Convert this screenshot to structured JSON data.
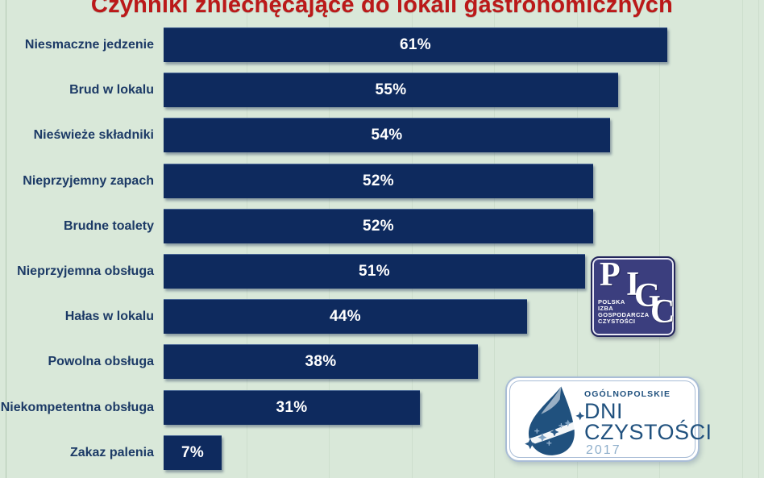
{
  "title": "Czynniki zniechęcające do lokali gastronomicznych",
  "chart_data": {
    "type": "bar",
    "orientation": "horizontal",
    "title": "Czynniki zniechęcające do lokali gastronomicznych",
    "categories": [
      "Niesmaczne jedzenie",
      "Brud w lokalu",
      "Nieświeże składniki",
      "Nieprzyjemny zapach",
      "Brudne toalety",
      "Nieprzyjemna obsługa",
      "Hałas w lokalu",
      "Powolna obsługa",
      "Niekompetentna obsługa",
      "Zakaz palenia"
    ],
    "values": [
      61,
      55,
      54,
      52,
      52,
      51,
      44,
      38,
      31,
      7
    ],
    "value_labels": [
      "61%",
      "55%",
      "54%",
      "52%",
      "52%",
      "51%",
      "44%",
      "38%",
      "31%",
      "7%"
    ],
    "xlabel": "",
    "ylabel": "",
    "xlim": [
      0,
      72
    ],
    "gridline_step": 10,
    "grid": "vertical-faint",
    "legend": "none"
  },
  "logos": {
    "pigc": {
      "letters": [
        "P",
        "I",
        "G",
        "C"
      ],
      "org_lines": [
        "POLSKA",
        "IZBA",
        "GOSPODARCZA",
        "CZYSTOŚCI"
      ]
    },
    "dni": {
      "top": "OGÓLNOPOLSKIE",
      "main1": "DNI",
      "main2": "CZYSTOŚCI",
      "year": "2017"
    }
  },
  "colors": {
    "background": "#d9e8d9",
    "bar": "#0e2a5e",
    "title": "#bb1919",
    "category_label": "#1c3a66",
    "bar_value_text": "#ffffff",
    "pigc_background": "#3b3e7e",
    "dni_blue": "#20517e",
    "dni_year": "#8fafcb"
  }
}
